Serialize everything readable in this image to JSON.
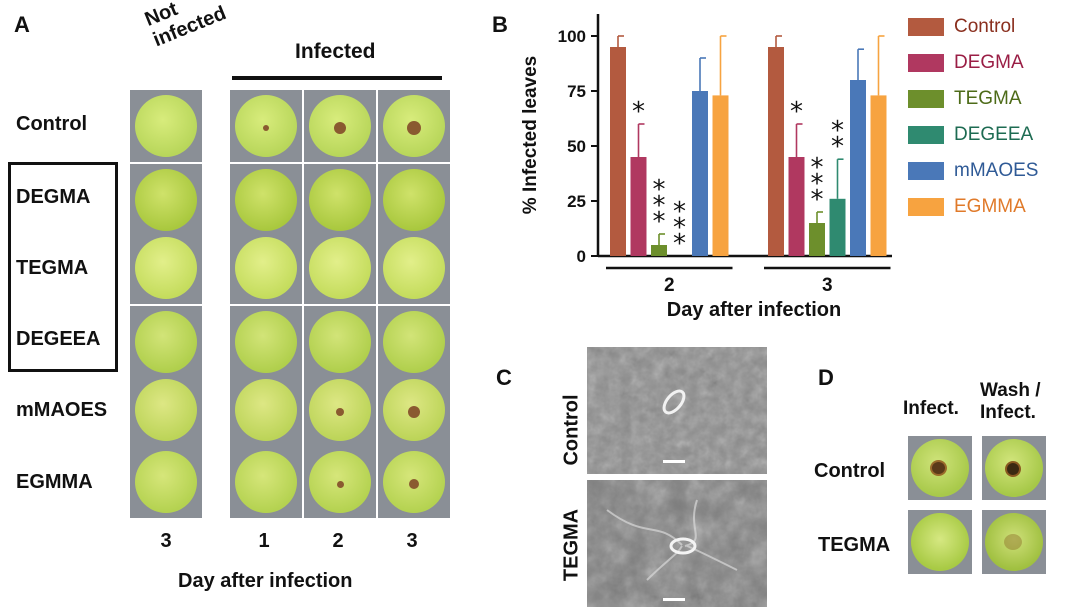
{
  "panelA": {
    "letter": "A",
    "header_not_infected_1": "Not",
    "header_not_infected_2": "infected",
    "header_infected": "Infected",
    "rows": [
      "Control",
      "DEGMA",
      "TEGMA",
      "DEGEEA",
      "mMAOES",
      "EGMMA"
    ],
    "days": [
      "3",
      "1",
      "2",
      "3"
    ],
    "xlabel": "Day after infection"
  },
  "panelB": {
    "letter": "B",
    "legend": [
      {
        "label": "Control",
        "color": "#b35a3f",
        "text_color": "#8a2f1e"
      },
      {
        "label": "DEGMA",
        "color": "#b03860",
        "text_color": "#9a1e45"
      },
      {
        "label": "TEGMA",
        "color": "#6d8f2c",
        "text_color": "#4d6b18"
      },
      {
        "label": "DEGEEA",
        "color": "#2f8a70",
        "text_color": "#1d6b52"
      },
      {
        "label": "mMAOES",
        "color": "#4a78b8",
        "text_color": "#2f5a96"
      },
      {
        "label": "EGMMA",
        "color": "#f7a340",
        "text_color": "#e07a2a"
      }
    ]
  },
  "chart_data": {
    "type": "bar",
    "categories": [
      "2",
      "3"
    ],
    "xlabel": "Day after infection",
    "ylabel": "% Infected leaves",
    "ylim": [
      0,
      110
    ],
    "yticks": [
      "0",
      "25",
      "50",
      "75",
      "100"
    ],
    "series": [
      {
        "name": "Control",
        "color": "#b35a3f",
        "values": [
          95,
          95
        ],
        "err": [
          5,
          5
        ],
        "sig": [
          "",
          ""
        ]
      },
      {
        "name": "DEGMA",
        "color": "#b03860",
        "values": [
          45,
          45
        ],
        "err": [
          15,
          15
        ],
        "sig": [
          "*",
          "*"
        ]
      },
      {
        "name": "TEGMA",
        "color": "#6d8f2c",
        "values": [
          5,
          15
        ],
        "err": [
          5,
          5
        ],
        "sig": [
          "***",
          "***"
        ]
      },
      {
        "name": "DEGEEA",
        "color": "#2f8a70",
        "values": [
          0,
          26
        ],
        "err": [
          0,
          18
        ],
        "sig": [
          "***",
          "**"
        ]
      },
      {
        "name": "mMAOES",
        "color": "#4a78b8",
        "values": [
          75,
          80
        ],
        "err": [
          15,
          14
        ],
        "sig": [
          "",
          ""
        ]
      },
      {
        "name": "EGMMA",
        "color": "#f7a340",
        "values": [
          73,
          73
        ],
        "err": [
          27,
          27
        ],
        "sig": [
          "",
          ""
        ]
      }
    ]
  },
  "panelC": {
    "letter": "C",
    "labels": [
      "Control",
      "TEGMA"
    ]
  },
  "panelD": {
    "letter": "D",
    "col1": "Infect.",
    "col2_line1": "Wash /",
    "col2_line2": "Infect.",
    "rows": [
      "Control",
      "TEGMA"
    ]
  }
}
